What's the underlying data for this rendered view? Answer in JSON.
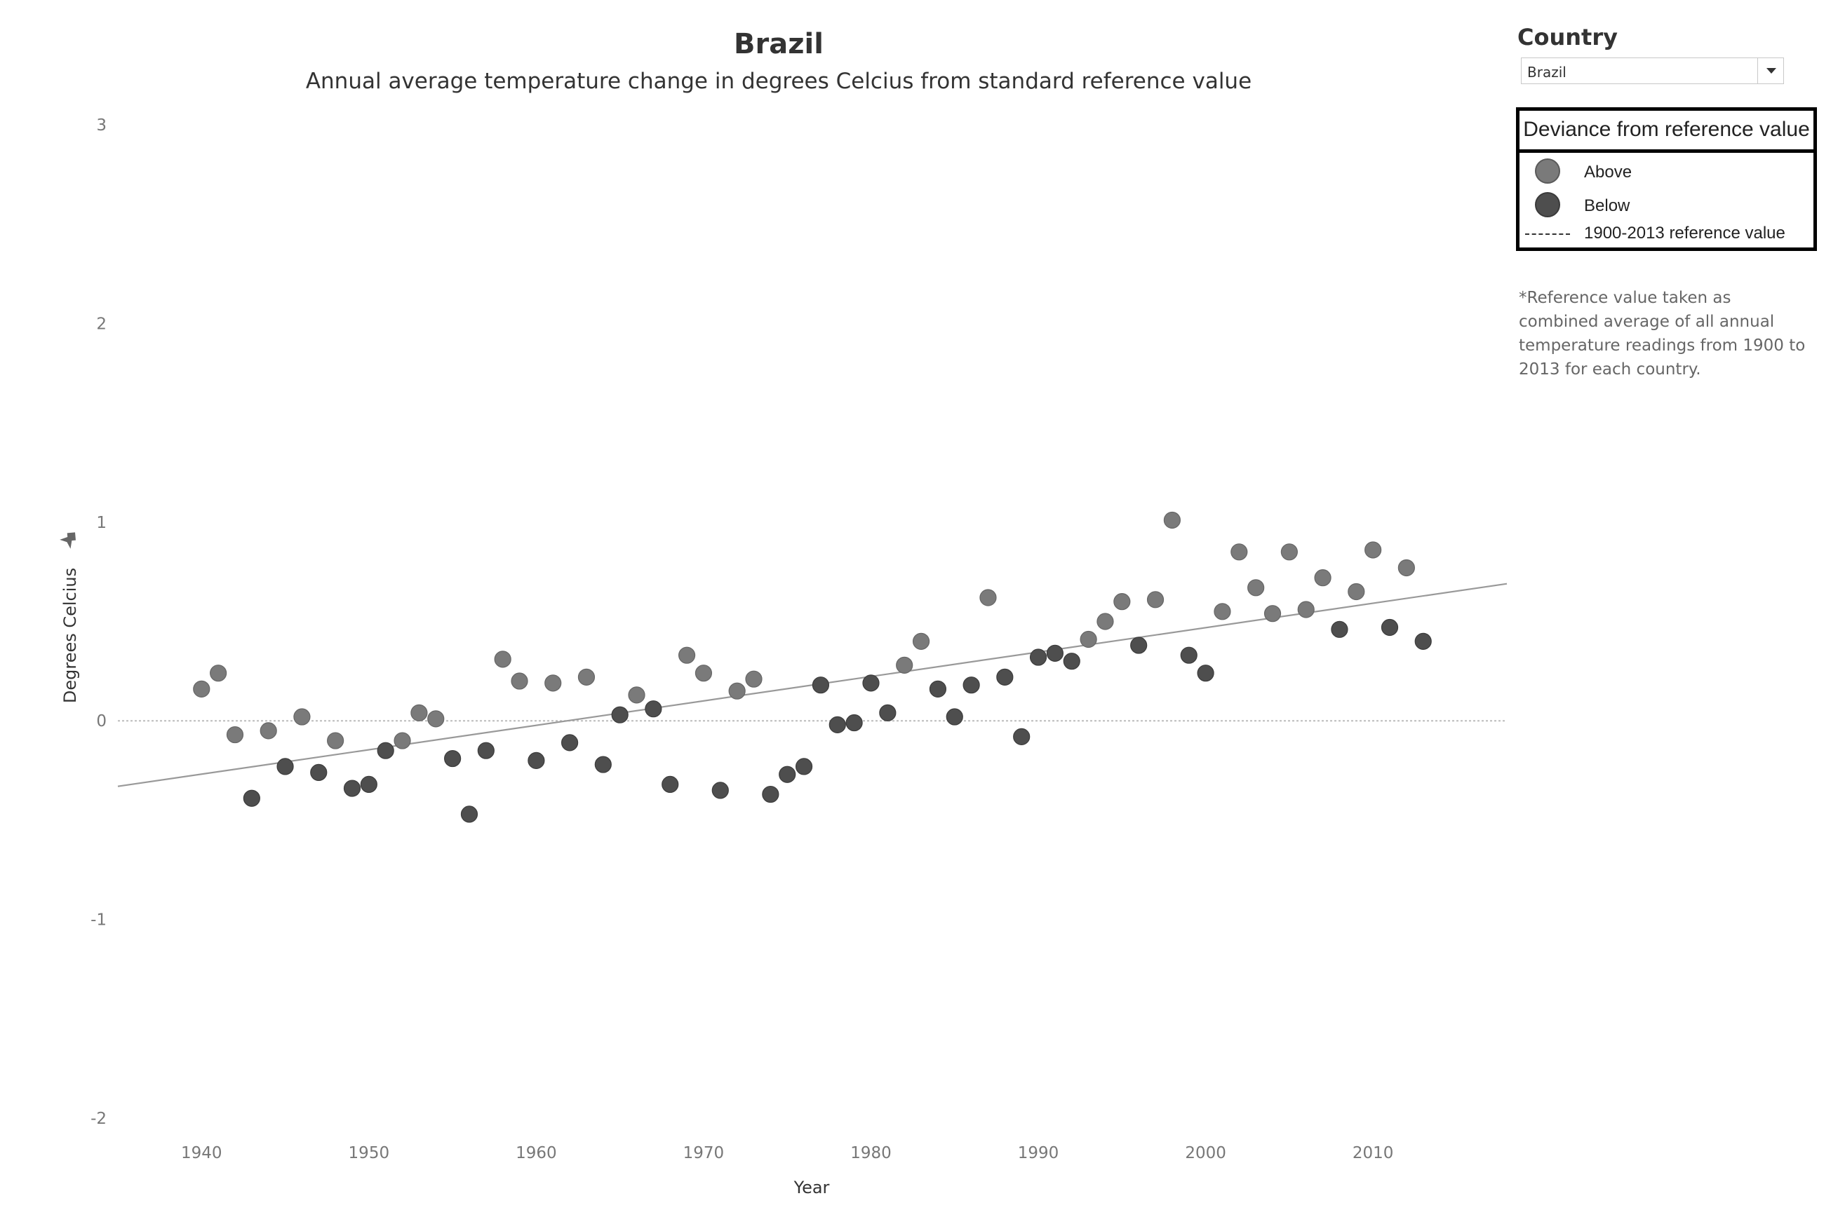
{
  "header": {
    "title": "Brazil",
    "subtitle": "Annual average temperature change in degrees Celcius from standard reference value"
  },
  "filter": {
    "label": "Country",
    "selected": "Brazil"
  },
  "legend": {
    "title": "Deviance from reference value",
    "items": [
      {
        "label": "Above",
        "color": "#7a7a7a"
      },
      {
        "label": "Below",
        "color": "#4e4e4e"
      },
      {
        "label": "1900-2013 reference value"
      }
    ]
  },
  "note": "*Reference value taken as combined average of all annual temperature readings from 1900 to 2013 for each country.",
  "icons": {
    "axis_pin": "pin-icon",
    "dropdown": "chevron-down-icon"
  },
  "chart_data": {
    "type": "scatter",
    "xlabel": "Year",
    "ylabel": "Degrees Celcius",
    "xlim": [
      1935,
      2018
    ],
    "ylim": [
      -2,
      3
    ],
    "x_ticks": [
      1940,
      1950,
      1960,
      1970,
      1980,
      1990,
      2000,
      2010
    ],
    "y_ticks": [
      3,
      2,
      1,
      0,
      -1,
      -2
    ],
    "reference_value": 0,
    "trend_line": {
      "x": [
        1935,
        2018
      ],
      "y": [
        -0.33,
        0.69
      ]
    },
    "grid": false,
    "legend_position": "top-right",
    "colors": {
      "above": "#7a7a7a",
      "below": "#4e4e4e",
      "trend": "#999999",
      "reference": "#bbbbbb"
    },
    "points": [
      {
        "x": 1940,
        "y": 0.16
      },
      {
        "x": 1941,
        "y": 0.24
      },
      {
        "x": 1942,
        "y": -0.07
      },
      {
        "x": 1943,
        "y": -0.39
      },
      {
        "x": 1944,
        "y": -0.05
      },
      {
        "x": 1945,
        "y": -0.23
      },
      {
        "x": 1946,
        "y": 0.02
      },
      {
        "x": 1947,
        "y": -0.26
      },
      {
        "x": 1948,
        "y": -0.1
      },
      {
        "x": 1949,
        "y": -0.34
      },
      {
        "x": 1950,
        "y": -0.32
      },
      {
        "x": 1951,
        "y": -0.15
      },
      {
        "x": 1952,
        "y": -0.1
      },
      {
        "x": 1953,
        "y": 0.04
      },
      {
        "x": 1954,
        "y": 0.01
      },
      {
        "x": 1955,
        "y": -0.19
      },
      {
        "x": 1956,
        "y": -0.47
      },
      {
        "x": 1957,
        "y": -0.15
      },
      {
        "x": 1958,
        "y": 0.31
      },
      {
        "x": 1959,
        "y": 0.2
      },
      {
        "x": 1960,
        "y": -0.2
      },
      {
        "x": 1961,
        "y": 0.19
      },
      {
        "x": 1962,
        "y": -0.11
      },
      {
        "x": 1963,
        "y": 0.22
      },
      {
        "x": 1964,
        "y": -0.22
      },
      {
        "x": 1965,
        "y": 0.03
      },
      {
        "x": 1966,
        "y": 0.13
      },
      {
        "x": 1967,
        "y": 0.06
      },
      {
        "x": 1968,
        "y": -0.32
      },
      {
        "x": 1969,
        "y": 0.33
      },
      {
        "x": 1970,
        "y": 0.24
      },
      {
        "x": 1971,
        "y": -0.35
      },
      {
        "x": 1972,
        "y": 0.15
      },
      {
        "x": 1973,
        "y": 0.21
      },
      {
        "x": 1974,
        "y": -0.37
      },
      {
        "x": 1975,
        "y": -0.27
      },
      {
        "x": 1976,
        "y": -0.23
      },
      {
        "x": 1977,
        "y": 0.18
      },
      {
        "x": 1978,
        "y": -0.02
      },
      {
        "x": 1979,
        "y": -0.01
      },
      {
        "x": 1980,
        "y": 0.19
      },
      {
        "x": 1981,
        "y": 0.04
      },
      {
        "x": 1982,
        "y": 0.28
      },
      {
        "x": 1983,
        "y": 0.4
      },
      {
        "x": 1984,
        "y": 0.16
      },
      {
        "x": 1985,
        "y": 0.02
      },
      {
        "x": 1986,
        "y": 0.18
      },
      {
        "x": 1987,
        "y": 0.62
      },
      {
        "x": 1988,
        "y": 0.22
      },
      {
        "x": 1989,
        "y": -0.08
      },
      {
        "x": 1990,
        "y": 0.32
      },
      {
        "x": 1991,
        "y": 0.34
      },
      {
        "x": 1992,
        "y": 0.3
      },
      {
        "x": 1993,
        "y": 0.41
      },
      {
        "x": 1994,
        "y": 0.5
      },
      {
        "x": 1995,
        "y": 0.6
      },
      {
        "x": 1996,
        "y": 0.38
      },
      {
        "x": 1997,
        "y": 0.61
      },
      {
        "x": 1998,
        "y": 1.01
      },
      {
        "x": 1999,
        "y": 0.33
      },
      {
        "x": 2000,
        "y": 0.24
      },
      {
        "x": 2001,
        "y": 0.55
      },
      {
        "x": 2002,
        "y": 0.85
      },
      {
        "x": 2003,
        "y": 0.67
      },
      {
        "x": 2004,
        "y": 0.54
      },
      {
        "x": 2005,
        "y": 0.85
      },
      {
        "x": 2006,
        "y": 0.56
      },
      {
        "x": 2007,
        "y": 0.72
      },
      {
        "x": 2008,
        "y": 0.46
      },
      {
        "x": 2009,
        "y": 0.65
      },
      {
        "x": 2010,
        "y": 0.86
      },
      {
        "x": 2011,
        "y": 0.47
      },
      {
        "x": 2012,
        "y": 0.77
      },
      {
        "x": 2013,
        "y": 0.4
      }
    ]
  }
}
